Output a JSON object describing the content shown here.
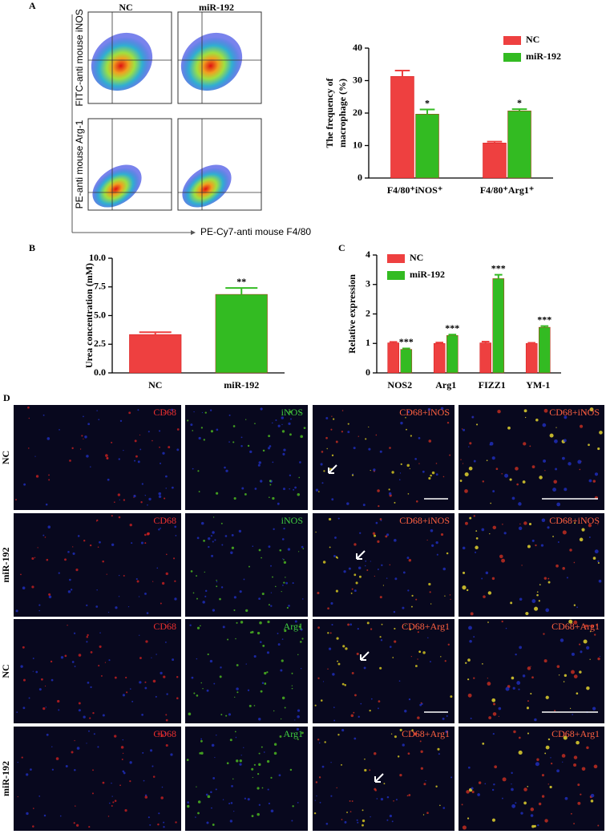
{
  "panel_labels": [
    "A",
    "B",
    "C",
    "D"
  ],
  "flow": {
    "column_titles": [
      "NC",
      "miR-192"
    ],
    "y_labels": [
      "FITC-anti mouse iNOS",
      "PE-anti mouse Arg-1"
    ],
    "x_label": "PE-Cy7-anti mouse F4/80"
  },
  "chart_data": [
    {
      "type": "bar",
      "y_label": [
        "The frequency of",
        "macrophage (%)"
      ],
      "categories": [
        "F4/80⁺iNOS⁺",
        "F4/80⁺Arg1⁺"
      ],
      "series": [
        {
          "name": "NC",
          "color": "#ee4040",
          "values": [
            31.3,
            10.8
          ],
          "errors": [
            1.8,
            0.4
          ]
        },
        {
          "name": "miR-192",
          "color": "#33bb22",
          "values": [
            19.7,
            20.7
          ],
          "errors": [
            1.4,
            0.5
          ],
          "annotations": [
            "*",
            "*"
          ]
        }
      ],
      "ylim": [
        0,
        40
      ],
      "yticks": [
        0,
        10,
        20,
        30,
        40
      ],
      "legend": "top-right"
    },
    {
      "type": "bar",
      "y_label": [
        "Urea concentration (mM)"
      ],
      "categories": [
        "NC",
        "miR-192"
      ],
      "values": [
        3.35,
        6.85
      ],
      "errors": [
        0.2,
        0.55
      ],
      "colors": [
        "#ee4040",
        "#33bb22"
      ],
      "annotations": [
        null,
        "**"
      ],
      "ylim": [
        0,
        10
      ],
      "yticks": [
        {
          "value": 0,
          "label": "0.0"
        },
        {
          "value": 2.5,
          "label": "2.5"
        },
        {
          "value": 5,
          "label": "5.0"
        },
        {
          "value": 7.5,
          "label": "7.5"
        },
        {
          "value": 10,
          "label": "10.0"
        }
      ]
    },
    {
      "type": "bar",
      "y_label": [
        "Relative expression"
      ],
      "categories": [
        "NOS2",
        "Arg1",
        "FIZZ1",
        "YM-1"
      ],
      "series": [
        {
          "name": "NC",
          "color": "#ee4040",
          "values": [
            1.02,
            1.0,
            1.02,
            1.0
          ],
          "errors": [
            0.03,
            0.03,
            0.04,
            0.02
          ]
        },
        {
          "name": "miR-192",
          "color": "#33bb22",
          "values": [
            0.8,
            1.27,
            3.2,
            1.55
          ],
          "errors": [
            0.03,
            0.03,
            0.13,
            0.04
          ],
          "annotations": [
            "***",
            "***",
            "***",
            "***"
          ]
        }
      ],
      "ylim": [
        0,
        4
      ],
      "yticks": [
        0,
        1,
        2,
        3,
        4
      ],
      "legend": "top-left"
    }
  ],
  "microscopy": {
    "row_labels": [
      "NC",
      "miR-192",
      "NC",
      "miR-192"
    ],
    "tile_labels": [
      [
        "CD68",
        "iNOS",
        "CD68+iNOS",
        "CD68+iNOS"
      ],
      [
        "CD68",
        "iNOS",
        "CD68+iNOS",
        "CD68+iNOS"
      ],
      [
        "CD68",
        "Arg1",
        "CD68+Arg1",
        "CD68+Arg1"
      ],
      [
        "CD68",
        "Arg1",
        "CD68+Arg1",
        "CD68+Arg1"
      ]
    ]
  }
}
